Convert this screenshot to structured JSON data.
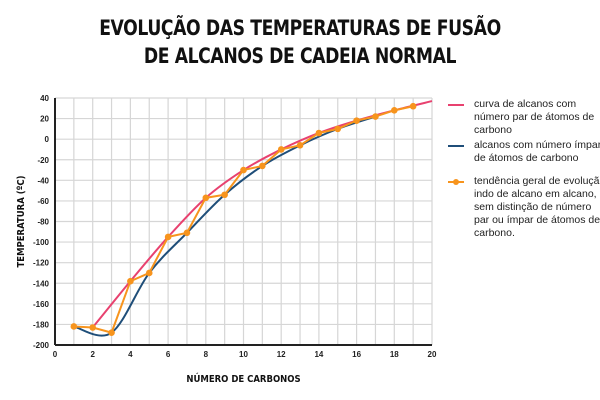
{
  "chart_data": {
    "type": "line",
    "title": "EVOLUÇÃO DAS TEMPERATURAS DE FUSÃO DE ALCANOS DE CADEIA NORMAL",
    "title_lines": [
      "EVOLUÇÃO DAS TEMPERATURAS DE FUSÃO",
      "DE ALCANOS DE CADEIA NORMAL"
    ],
    "xlabel": "NÚMERO DE CARBONOS",
    "ylabel": "TEMPERATURA (ºC)",
    "xlim": [
      0,
      20
    ],
    "ylim": [
      -200,
      40
    ],
    "xticks": [
      0,
      2,
      4,
      6,
      8,
      10,
      12,
      14,
      16,
      18,
      20
    ],
    "yticks": [
      40,
      20,
      0,
      -20,
      -40,
      -60,
      -80,
      -100,
      -120,
      -140,
      -160,
      -180,
      -200
    ],
    "grid": true,
    "legend_position": "right",
    "series": [
      {
        "name": "curva de alcanos com número par de átomos de carbono",
        "color": "#e8416f",
        "x": [
          2,
          4,
          6,
          8,
          10,
          12,
          14,
          16,
          18,
          20
        ],
        "y": [
          -183,
          -138,
          -95,
          -57,
          -30,
          -10,
          6,
          18,
          28,
          37
        ]
      },
      {
        "name": "alcanos com número ímpar de átomos de carbono",
        "color": "#1f4e79",
        "x": [
          1,
          3,
          5,
          7,
          9,
          11,
          13,
          15,
          17
        ],
        "y": [
          -182,
          -188,
          -130,
          -91,
          -54,
          -26,
          -6,
          10,
          22
        ]
      },
      {
        "name": "tendência geral de evolução, indo de alcano em alcano, sem distinção de número par ou ímpar de átomos de carbono.",
        "color": "#f7941d",
        "markers": true,
        "x": [
          1,
          2,
          3,
          4,
          5,
          6,
          7,
          8,
          9,
          10,
          11,
          12,
          13,
          14,
          15,
          16,
          17,
          18,
          19
        ],
        "y": [
          -182,
          -183,
          -188,
          -138,
          -130,
          -95,
          -91,
          -57,
          -54,
          -30,
          -26,
          -10,
          -6,
          6,
          10,
          18,
          22,
          28,
          32
        ]
      }
    ]
  }
}
